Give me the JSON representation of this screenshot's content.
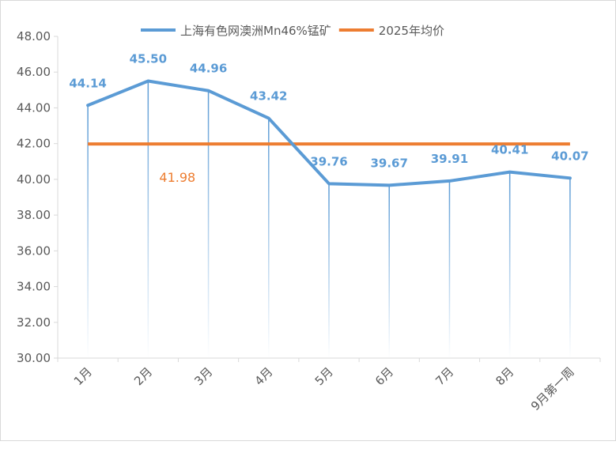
{
  "chart_data": {
    "type": "line",
    "categories": [
      "1月",
      "2月",
      "3月",
      "4月",
      "5月",
      "6月",
      "7月",
      "8月",
      "9月第一周"
    ],
    "series": [
      {
        "name": "上海有色网澳洲Mn46%锰矿",
        "values": [
          44.14,
          45.5,
          44.96,
          43.42,
          39.76,
          39.67,
          39.91,
          40.41,
          40.07
        ],
        "labels": [
          "44.14",
          "45.50",
          "44.96",
          "43.42",
          "39.76",
          "39.67",
          "39.91",
          "40.41",
          "40.07"
        ],
        "color": "#5b9bd5"
      },
      {
        "name": "2025年均价",
        "value": 41.98,
        "label": "41.98",
        "color": "#ed7d31"
      }
    ],
    "ylim": [
      30,
      48
    ],
    "yticks": [
      "30.00",
      "32.00",
      "34.00",
      "36.00",
      "38.00",
      "40.00",
      "42.00",
      "44.00",
      "46.00",
      "48.00"
    ],
    "grid": false,
    "drop_lines": true,
    "legend": "top",
    "title": "",
    "xlabel": "",
    "ylabel": ""
  }
}
